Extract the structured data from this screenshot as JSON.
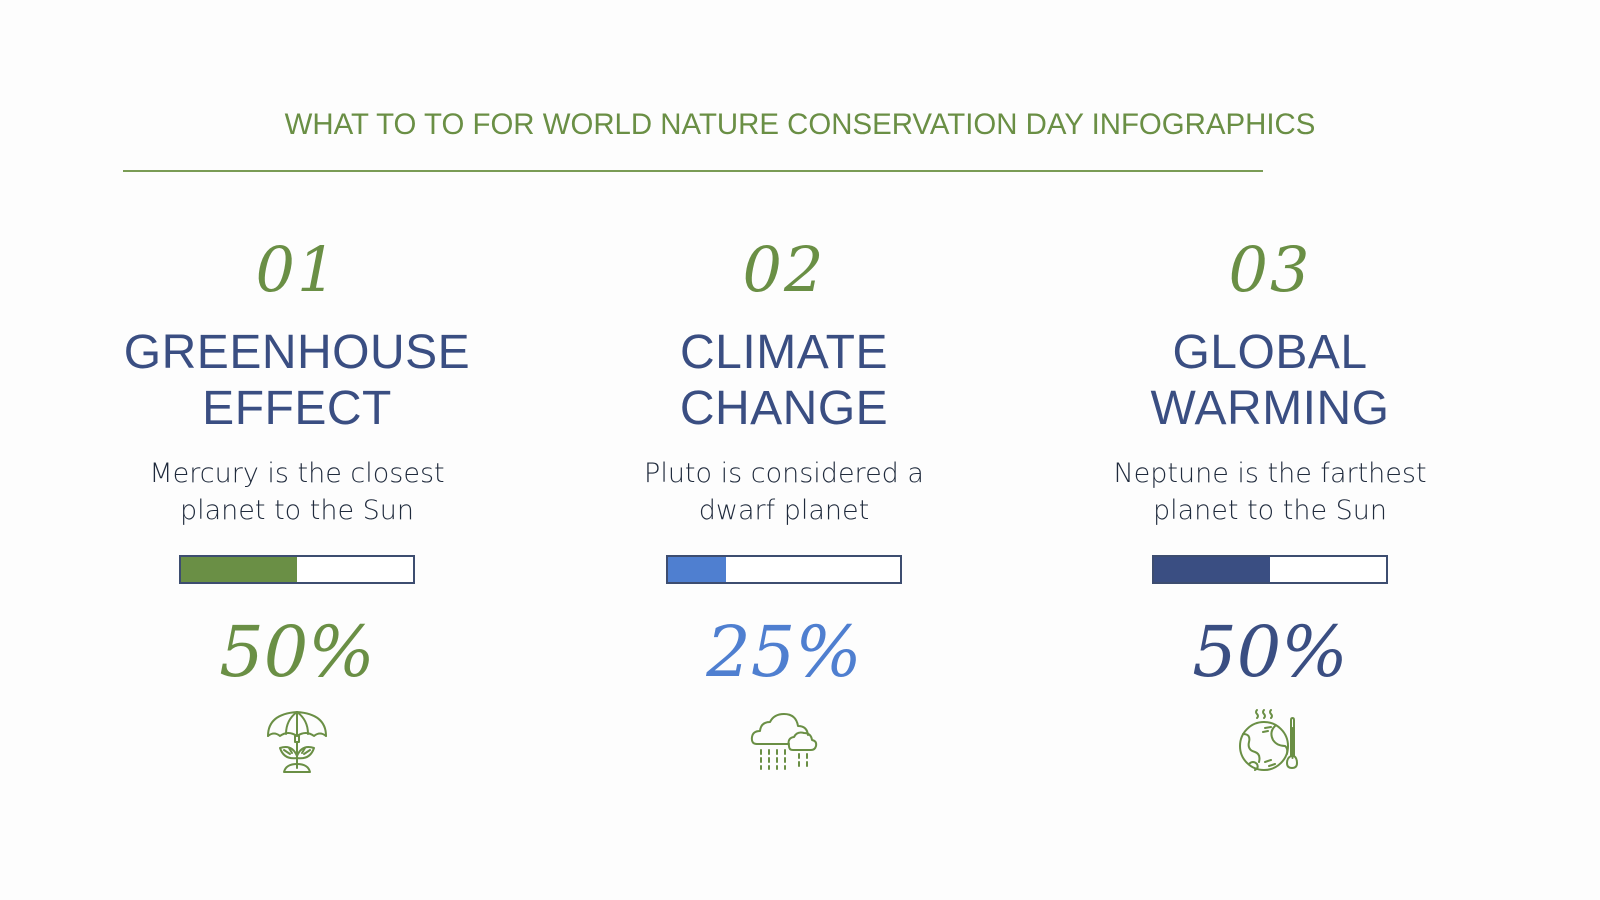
{
  "title": "WHAT TO TO FOR WORLD NATURE CONSERVATION DAY INFOGRAPHICS",
  "colors": {
    "green": "#6a8f45",
    "navy": "#3a4e82",
    "light_blue": "#4f7fd0",
    "text_dark": "#1f2a3c",
    "bar_border": "#3d4d70"
  },
  "items": [
    {
      "number": "01",
      "heading_line1": "GREENHOUSE",
      "heading_line2": "EFFECT",
      "desc_line1": "Mercury is the closest",
      "desc_line2": "planet to the Sun",
      "percent_label": "50%",
      "percent_value": 50,
      "fill_color": "#6a8f45",
      "percent_color": "#6a8f45",
      "icon": "umbrella-plant-icon"
    },
    {
      "number": "02",
      "heading_line1": "CLIMATE",
      "heading_line2": "CHANGE",
      "desc_line1": "Pluto is considered a",
      "desc_line2": "dwarf planet",
      "percent_label": "25%",
      "percent_value": 25,
      "fill_color": "#4f7fd0",
      "percent_color": "#4f7fd0",
      "icon": "rain-cloud-icon"
    },
    {
      "number": "03",
      "heading_line1": "GLOBAL",
      "heading_line2": "WARMING",
      "desc_line1": "Neptune is the farthest",
      "desc_line2": "planet to the Sun",
      "percent_label": "50%",
      "percent_value": 50,
      "fill_color": "#3a4e82",
      "percent_color": "#3a4e82",
      "icon": "hot-earth-thermometer-icon"
    }
  ]
}
